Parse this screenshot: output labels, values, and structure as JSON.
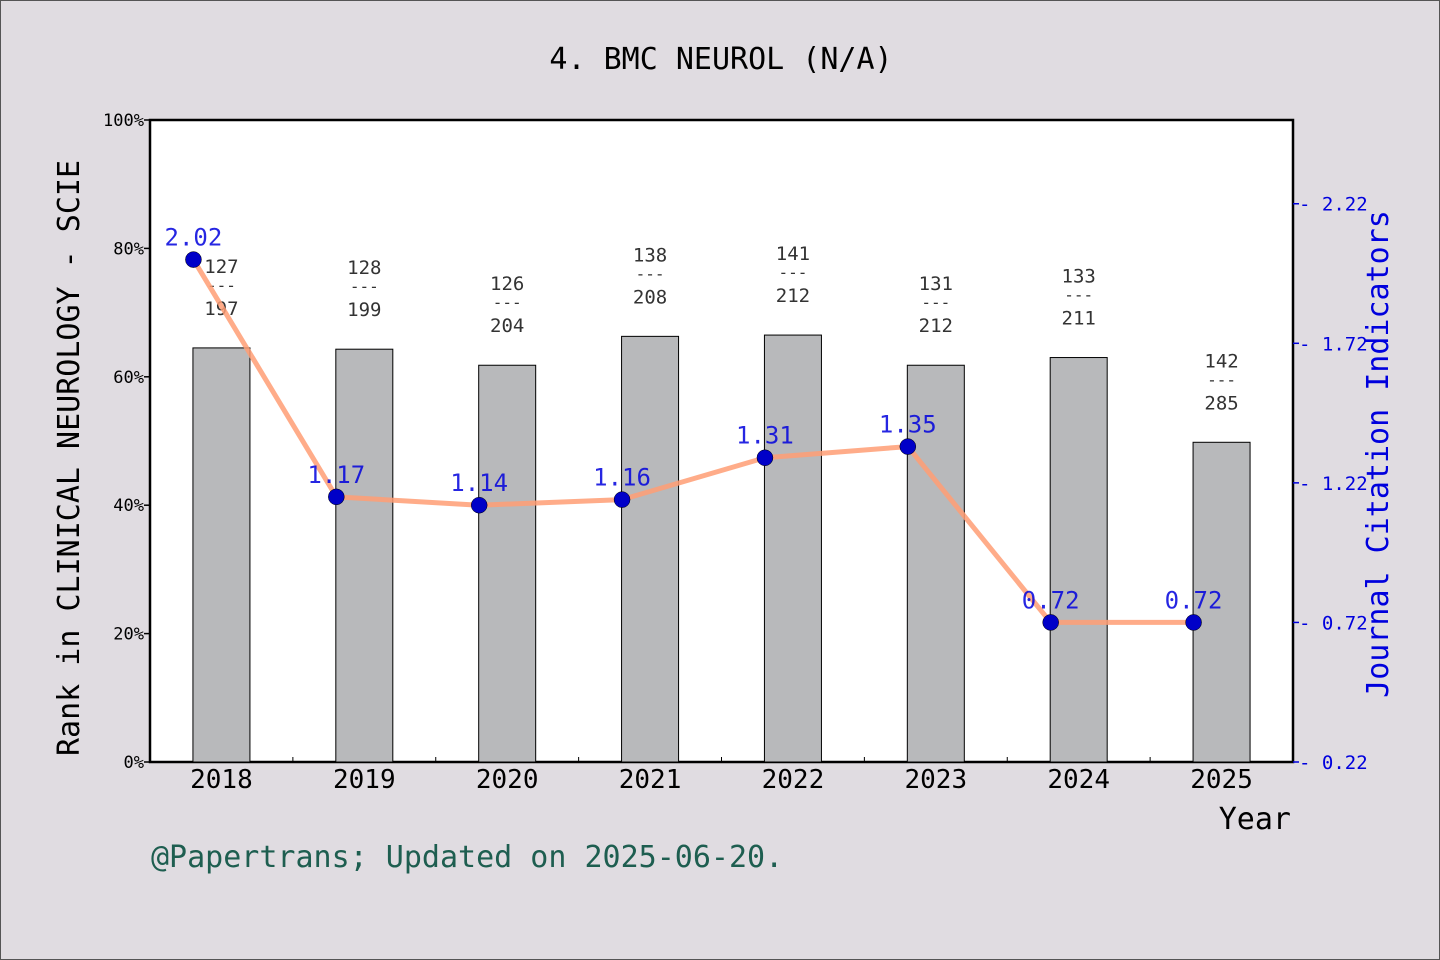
{
  "colors": {
    "background": "#e0dce1",
    "plot_bg": "#ffffff",
    "bar_fill": "#b8b9bb",
    "line": "#ff9d74",
    "marker": "#0000c8",
    "jci_text": "#0000dd",
    "footer_text": "#1e5e50"
  },
  "footer": "@Papertrans; Updated on 2025-06-20.",
  "chart_data": {
    "type": "bar",
    "title": "4. BMC NEUROL (N/A)",
    "xlabel": "Year",
    "ylabel": "Rank in CLINICAL NEUROLOGY - SCIE",
    "y2label": "Journal Citation Indicators",
    "categories": [
      "2018",
      "2019",
      "2020",
      "2021",
      "2022",
      "2023",
      "2024",
      "2025"
    ],
    "ylim": [
      0,
      100
    ],
    "yticks": [
      "0%",
      "20%",
      "40%",
      "60%",
      "80%",
      "100%"
    ],
    "y2lim": [
      0.22,
      2.52
    ],
    "y2ticks": [
      "0.22",
      "0.72",
      "1.22",
      "1.72",
      "2.22"
    ],
    "grid": false,
    "series": [
      {
        "kind": "bar",
        "ranks": [
          "127",
          "128",
          "126",
          "138",
          "141",
          "131",
          "133",
          "142"
        ],
        "totals": [
          "197",
          "199",
          "204",
          "208",
          "212",
          "212",
          "211",
          "285"
        ],
        "separator": "---",
        "values": [
          64.5,
          64.3,
          61.8,
          66.3,
          66.5,
          61.8,
          63.0,
          49.8
        ]
      },
      {
        "kind": "line",
        "values": [
          2.02,
          1.17,
          1.14,
          1.16,
          1.31,
          1.35,
          0.72,
          0.72
        ],
        "labels": [
          "2.02",
          "1.17",
          "1.14",
          "1.16",
          "1.31",
          "1.35",
          "0.72",
          "0.72"
        ]
      }
    ]
  }
}
